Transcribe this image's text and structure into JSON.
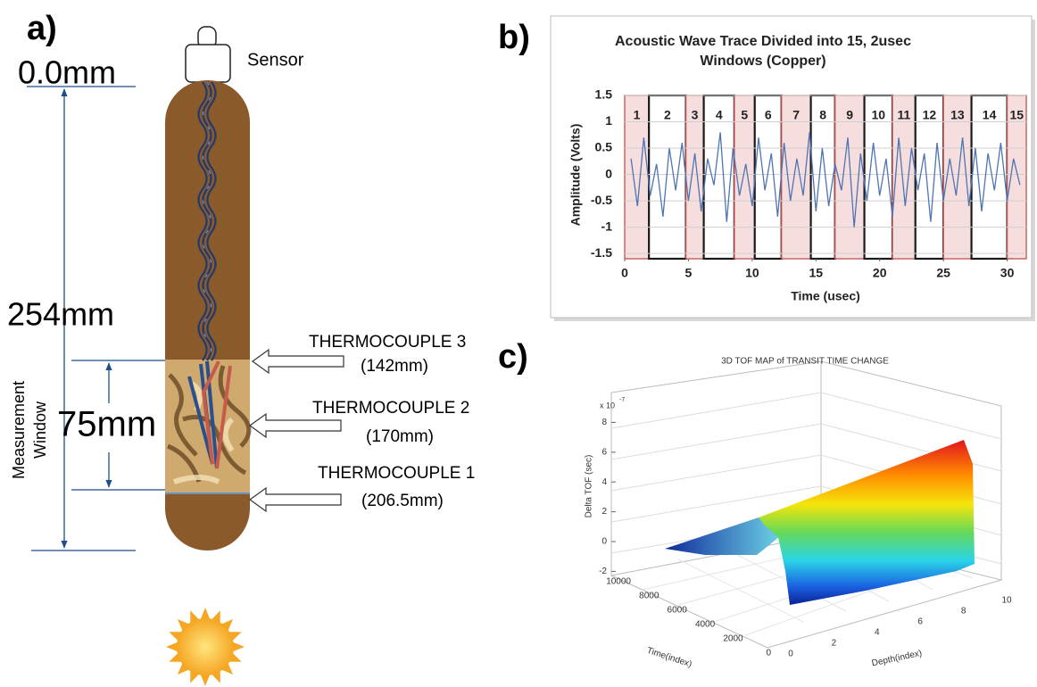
{
  "panel_labels": [
    "a)",
    "b)",
    "c)"
  ],
  "diagram": {
    "sensor": "Sensor",
    "total_top": "0.0mm",
    "total_length": "254mm",
    "window_length": "75mm",
    "window_label": [
      "Measurement",
      "Window"
    ],
    "thermocouples": [
      {
        "name": "THERMOCOUPLE 3",
        "position": "(142mm)"
      },
      {
        "name": "THERMOCOUPLE 2",
        "position": "(170mm)"
      },
      {
        "name": "THERMOCOUPLE 1",
        "position": "(206.5mm)"
      }
    ]
  },
  "chart_data": [
    {
      "type": "line",
      "title": "Acoustic Wave Trace Divided into 15, 2usec Windows (Copper)",
      "xlabel": "Time (usec)",
      "ylabel": "Amplitude (Volts)",
      "x": [
        0.5,
        1,
        1.5,
        2,
        2.5,
        3,
        3.5,
        4,
        4.5,
        5,
        5.5,
        6,
        6.5,
        7,
        7.5,
        8,
        8.5,
        9,
        9.5,
        10,
        10.5,
        11,
        11.5,
        12,
        12.5,
        13,
        13.5,
        14,
        14.5,
        15,
        15.5,
        16,
        16.5,
        17,
        17.5,
        18,
        18.5,
        19,
        19.5,
        20,
        20.5,
        21,
        21.5,
        22,
        22.5,
        23,
        23.5,
        24,
        24.5,
        25,
        25.5,
        26,
        26.5,
        27,
        27.5,
        28,
        28.5,
        29,
        29.5,
        30,
        30.5,
        31
      ],
      "values": [
        0.3,
        -0.6,
        0.7,
        -0.4,
        0.2,
        -0.8,
        0.5,
        -0.3,
        0.6,
        -0.5,
        0.4,
        -0.7,
        0.3,
        -0.2,
        0.8,
        -0.9,
        0.5,
        -0.4,
        0.2,
        -0.6,
        0.7,
        -0.3,
        0.4,
        -0.8,
        0.6,
        -0.5,
        0.3,
        -0.4,
        0.8,
        -0.7,
        0.5,
        -0.6,
        0.2,
        -0.3,
        0.7,
        -1.0,
        0.4,
        -0.5,
        0.6,
        -0.4,
        0.3,
        -0.8,
        0.7,
        -0.6,
        0.5,
        -0.3,
        0.4,
        -0.9,
        0.6,
        -0.5,
        0.3,
        -0.4,
        0.7,
        -0.6,
        0.5,
        -0.7,
        0.4,
        -0.3,
        0.6,
        -0.5,
        0.3,
        -0.2
      ],
      "color": "#4f74b3",
      "xlim": [
        0,
        31.5
      ],
      "ylim": [
        -1.6,
        1.5
      ],
      "xticks": [
        0,
        5,
        10,
        15,
        20,
        25,
        30
      ],
      "yticks": [
        1.5,
        1,
        0.5,
        0,
        -0.5,
        -1,
        -1.5
      ],
      "grid": true,
      "windows": {
        "labels": [
          1,
          2,
          3,
          4,
          5,
          6,
          7,
          8,
          9,
          10,
          11,
          12,
          13,
          14,
          15
        ],
        "bins": [
          0,
          1.9,
          4.8,
          6.2,
          8.6,
          10.2,
          12.3,
          14.6,
          16.5,
          18.8,
          21.0,
          22.8,
          25.0,
          27.2,
          30.0,
          31.5
        ],
        "colors": [
          "#c0504d",
          "#1a1a1a"
        ]
      }
    },
    {
      "type": "surface",
      "title": "3D TOF MAP of TRANSIT TIME CHANGE",
      "xlabel": "Time(index)",
      "ylabel": "Depth(index)",
      "zlabel": "Delta TOF (sec)",
      "zscale": "x 10",
      "zscale_power": -7,
      "xlim": [
        0,
        10000
      ],
      "xticks": [
        0,
        2000,
        4000,
        6000,
        8000,
        10000
      ],
      "ylim": [
        0,
        10
      ],
      "yticks": [
        0,
        2,
        4,
        6,
        8,
        10
      ],
      "zlim": [
        -2,
        8
      ],
      "zticks": [
        -2,
        0,
        2,
        4,
        6,
        8
      ]
    }
  ]
}
